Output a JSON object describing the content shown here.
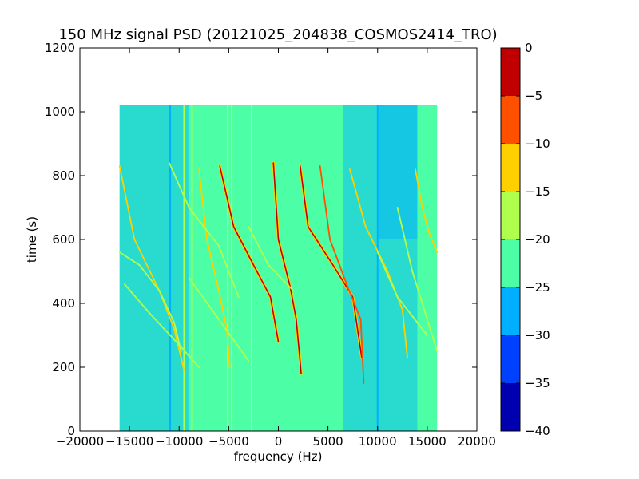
{
  "chart_data": {
    "type": "heatmap",
    "title": "150 MHz signal PSD (20121025_204838_COSMOS2414_TRO)",
    "xlabel": "frequency (Hz)",
    "ylabel": "time (s)",
    "xlim": [
      -20000,
      20000
    ],
    "ylim": [
      0,
      1200
    ],
    "x_ticks": [
      -20000,
      -15000,
      -10000,
      -5000,
      0,
      5000,
      10000,
      15000,
      20000
    ],
    "x_tick_labels": [
      "−20000",
      "−15000",
      "−10000",
      "−5000",
      "0",
      "5000",
      "10000",
      "15000",
      "20000"
    ],
    "y_ticks": [
      0,
      200,
      400,
      600,
      800,
      1000,
      1200
    ],
    "y_tick_labels": [
      "0",
      "200",
      "400",
      "600",
      "800",
      "1000",
      "1200"
    ],
    "data_extent": {
      "x": [
        -16000,
        16000
      ],
      "y": [
        0,
        1020
      ]
    },
    "background_level": -22.5,
    "colorbar": {
      "levels": [
        -40,
        -35,
        -30,
        -25,
        -20,
        -15,
        -10,
        -5,
        0
      ],
      "labels": [
        "−40",
        "−35",
        "−30",
        "−25",
        "−20",
        "−15",
        "−10",
        "−5",
        "0"
      ],
      "colors": [
        "#0000b0",
        "#0040ff",
        "#00b0ff",
        "#4cffa6",
        "#b0ff4c",
        "#ffd000",
        "#ff5000",
        "#c00000"
      ]
    },
    "noise_regions": [
      {
        "x": [
          -16000,
          -9000
        ],
        "y": [
          0,
          1020
        ],
        "level": -27.5
      },
      {
        "x": [
          6500,
          14000
        ],
        "y": [
          0,
          1020
        ],
        "level": -27.5
      },
      {
        "x": [
          10000,
          14000
        ],
        "y": [
          600,
          1020
        ],
        "level": -27.5
      }
    ],
    "vertical_lines": [
      {
        "x": -10900,
        "level": -27.5
      },
      {
        "x": -9500,
        "level": -17.5
      },
      {
        "x": -8700,
        "level": -17.5
      },
      {
        "x": -5100,
        "level": -17.5
      },
      {
        "x": -4700,
        "level": -17.5
      },
      {
        "x": -2700,
        "level": -17.5
      },
      {
        "x": 10000,
        "level": -27.5
      }
    ],
    "tracks": [
      {
        "x": [
          -500,
          0,
          1200,
          1800,
          2300
        ],
        "y": [
          840,
          600,
          450,
          350,
          180
        ],
        "level": -2.5
      },
      {
        "x": [
          -5900,
          -4500,
          -2500,
          -800,
          0
        ],
        "y": [
          830,
          640,
          520,
          420,
          280
        ],
        "level": -2.5
      },
      {
        "x": [
          2200,
          3000,
          5500,
          7500,
          8400
        ],
        "y": [
          830,
          640,
          520,
          420,
          230
        ],
        "level": -2.5
      },
      {
        "x": [
          4200,
          5200,
          7000,
          8300,
          8600
        ],
        "y": [
          830,
          600,
          450,
          350,
          150
        ],
        "level": -7.5
      },
      {
        "x": [
          -16000,
          -14500,
          -12000,
          -10500,
          -9500
        ],
        "y": [
          830,
          600,
          440,
          320,
          190
        ],
        "level": -12.5
      },
      {
        "x": [
          -8000,
          -7200,
          -6000,
          -5200,
          -4900
        ],
        "y": [
          820,
          600,
          440,
          320,
          200
        ],
        "level": -12.5
      },
      {
        "x": [
          7200,
          8800,
          11000,
          12500,
          13000
        ],
        "y": [
          820,
          640,
          500,
          380,
          230
        ],
        "level": -12.5
      },
      {
        "x": [
          13800,
          14500,
          15200,
          16000
        ],
        "y": [
          820,
          700,
          620,
          560
        ],
        "level": -12.5
      },
      {
        "x": [
          -16000,
          -14000,
          -12000,
          -10500,
          -9800
        ],
        "y": [
          560,
          520,
          440,
          340,
          250
        ],
        "level": -17.5
      },
      {
        "x": [
          -15500,
          -13000,
          -10000,
          -8000
        ],
        "y": [
          460,
          370,
          270,
          200
        ],
        "level": -17.5
      },
      {
        "x": [
          -11000,
          -9000,
          -6000,
          -4000
        ],
        "y": [
          840,
          700,
          580,
          420
        ],
        "level": -17.5
      },
      {
        "x": [
          -3000,
          -1000,
          1500
        ],
        "y": [
          640,
          520,
          440
        ],
        "level": -17.5
      },
      {
        "x": [
          10000,
          12000,
          15000
        ],
        "y": [
          560,
          420,
          300
        ],
        "level": -17.5
      },
      {
        "x": [
          -9000,
          -6000,
          -3000
        ],
        "y": [
          480,
          350,
          220
        ],
        "level": -17.5
      },
      {
        "x": [
          12000,
          13500,
          16000
        ],
        "y": [
          700,
          500,
          250
        ],
        "level": -17.5
      }
    ]
  }
}
